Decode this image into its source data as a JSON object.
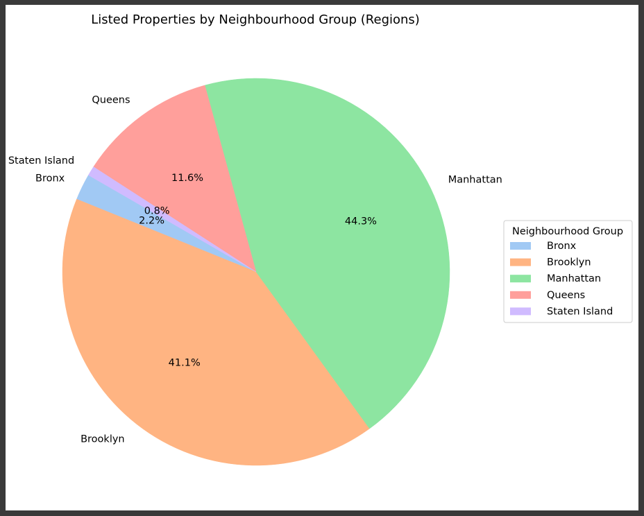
{
  "chart_data": {
    "type": "pie",
    "title": "Listed Properties by Neighbourhood Group (Regions)",
    "categories": [
      "Bronx",
      "Brooklyn",
      "Manhattan",
      "Queens",
      "Staten Island"
    ],
    "values": [
      2.2,
      41.1,
      44.3,
      11.6,
      0.8
    ],
    "value_labels": [
      "2.2%",
      "41.1%",
      "44.3%",
      "11.6%",
      "0.8%"
    ],
    "colors": [
      "#a1c9f4",
      "#ffb482",
      "#8de5a1",
      "#ff9f9b",
      "#d0bbff"
    ],
    "start_angle_deg": 150,
    "direction": "counterclockwise",
    "legend": {
      "title": "Neighbourhood Group",
      "placement": "right",
      "entries": [
        "Bronx",
        "Brooklyn",
        "Manhattan",
        "Queens",
        "Staten Island"
      ]
    }
  }
}
